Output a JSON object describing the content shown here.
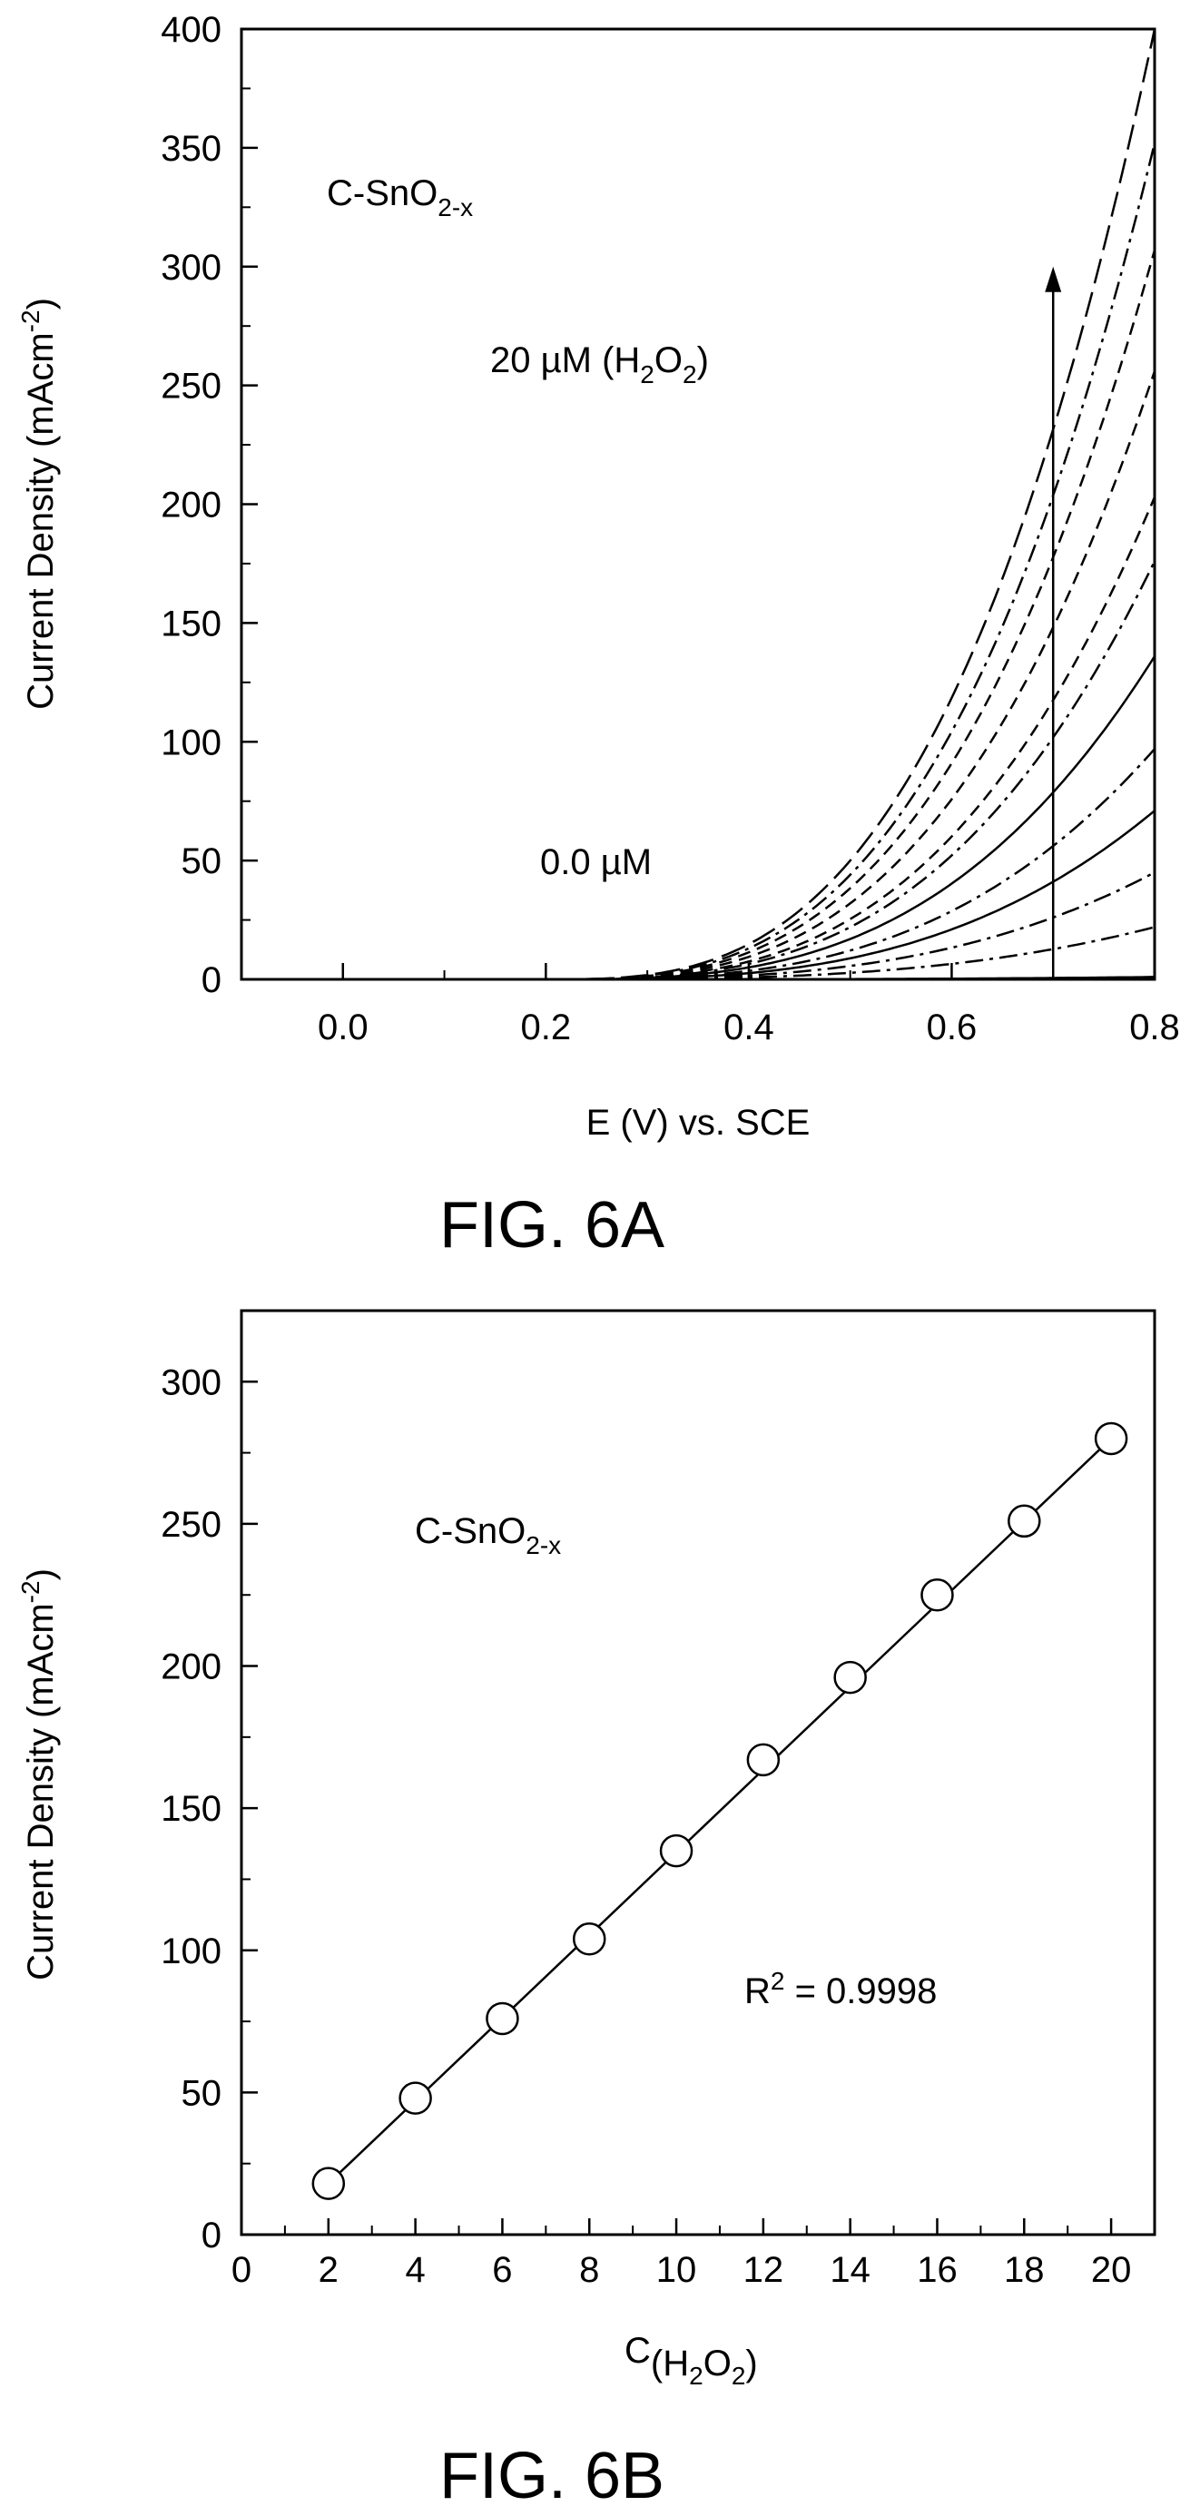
{
  "chart_data": [
    {
      "type": "line",
      "figure_label": "FIG. 6A",
      "xlabel": "E (V) vs. SCE",
      "ylabel": {
        "main": "Current Density (mAcm",
        "sup": "-2",
        "tail": ")"
      },
      "xlim": [
        -0.1,
        0.8
      ],
      "ylim": [
        0,
        400
      ],
      "x_ticks": [
        0.0,
        0.2,
        0.4,
        0.6,
        0.8
      ],
      "x_tick_labels": [
        "0.0",
        "0.2",
        "0.4",
        "0.6",
        "0.8"
      ],
      "y_ticks": [
        0,
        50,
        100,
        150,
        200,
        250,
        300,
        350,
        400
      ],
      "y_tick_labels": [
        "0",
        "50",
        "100",
        "150",
        "200",
        "250",
        "300",
        "350",
        "400"
      ],
      "annotations": {
        "material": {
          "main": "C-SnO",
          "sub": "2-x"
        },
        "top_concentration": {
          "a": "20 µM (H",
          "s1": "2",
          "b": "O",
          "s2": "2",
          "c": ")"
        },
        "bottom_concentration": "0.0 µM"
      },
      "arrow": {
        "x": 0.7,
        "y_from": 0,
        "y_to": 300
      },
      "series_curve": {
        "onset_v": 0.2,
        "exponent": 3
      },
      "series": [
        {
          "end_value": 1,
          "dash": ""
        },
        {
          "end_value": 22,
          "dash": "dashdot"
        },
        {
          "end_value": 45,
          "dash": "dashdot"
        },
        {
          "end_value": 71,
          "dash": ""
        },
        {
          "end_value": 97,
          "dash": "dashdot"
        },
        {
          "end_value": 136,
          "dash": ""
        },
        {
          "end_value": 176,
          "dash": "dashdot"
        },
        {
          "end_value": 203,
          "dash": "dash"
        },
        {
          "end_value": 256,
          "dash": "dash"
        },
        {
          "end_value": 307,
          "dash": "dash"
        },
        {
          "end_value": 352,
          "dash": "dashdot"
        },
        {
          "end_value": 400,
          "dash": "longdash"
        }
      ]
    },
    {
      "type": "scatter",
      "figure_label": "FIG. 6B",
      "xlabel": {
        "main": "C",
        "sub": "(H",
        "s1": "2",
        "b": "O",
        "s2": "2",
        "c": ")"
      },
      "ylabel": {
        "main": "Current Density (mAcm",
        "sup": "-2",
        "tail": ")"
      },
      "xlim": [
        0,
        21
      ],
      "ylim": [
        0,
        325
      ],
      "x_ticks": [
        0,
        2,
        4,
        6,
        8,
        10,
        12,
        14,
        16,
        18,
        20
      ],
      "x_tick_labels": [
        "0",
        "2",
        "4",
        "6",
        "8",
        "10",
        "12",
        "14",
        "16",
        "18",
        "20"
      ],
      "y_ticks": [
        0,
        50,
        100,
        150,
        200,
        250,
        300
      ],
      "y_tick_labels": [
        "0",
        "50",
        "100",
        "150",
        "200",
        "250",
        "300"
      ],
      "annotations": {
        "material": {
          "main": "C-SnO",
          "sub": "2-x"
        },
        "r_squared": {
          "main": "R",
          "sup": "2",
          "tail": " = 0.9998"
        }
      },
      "x": [
        2,
        4,
        6,
        8,
        10,
        12,
        14,
        16,
        18,
        20
      ],
      "y": [
        18,
        48,
        76,
        104,
        135,
        167,
        196,
        225,
        251,
        280
      ],
      "fit_line": {
        "x": [
          2,
          20
        ],
        "y": [
          18,
          280
        ]
      }
    }
  ]
}
